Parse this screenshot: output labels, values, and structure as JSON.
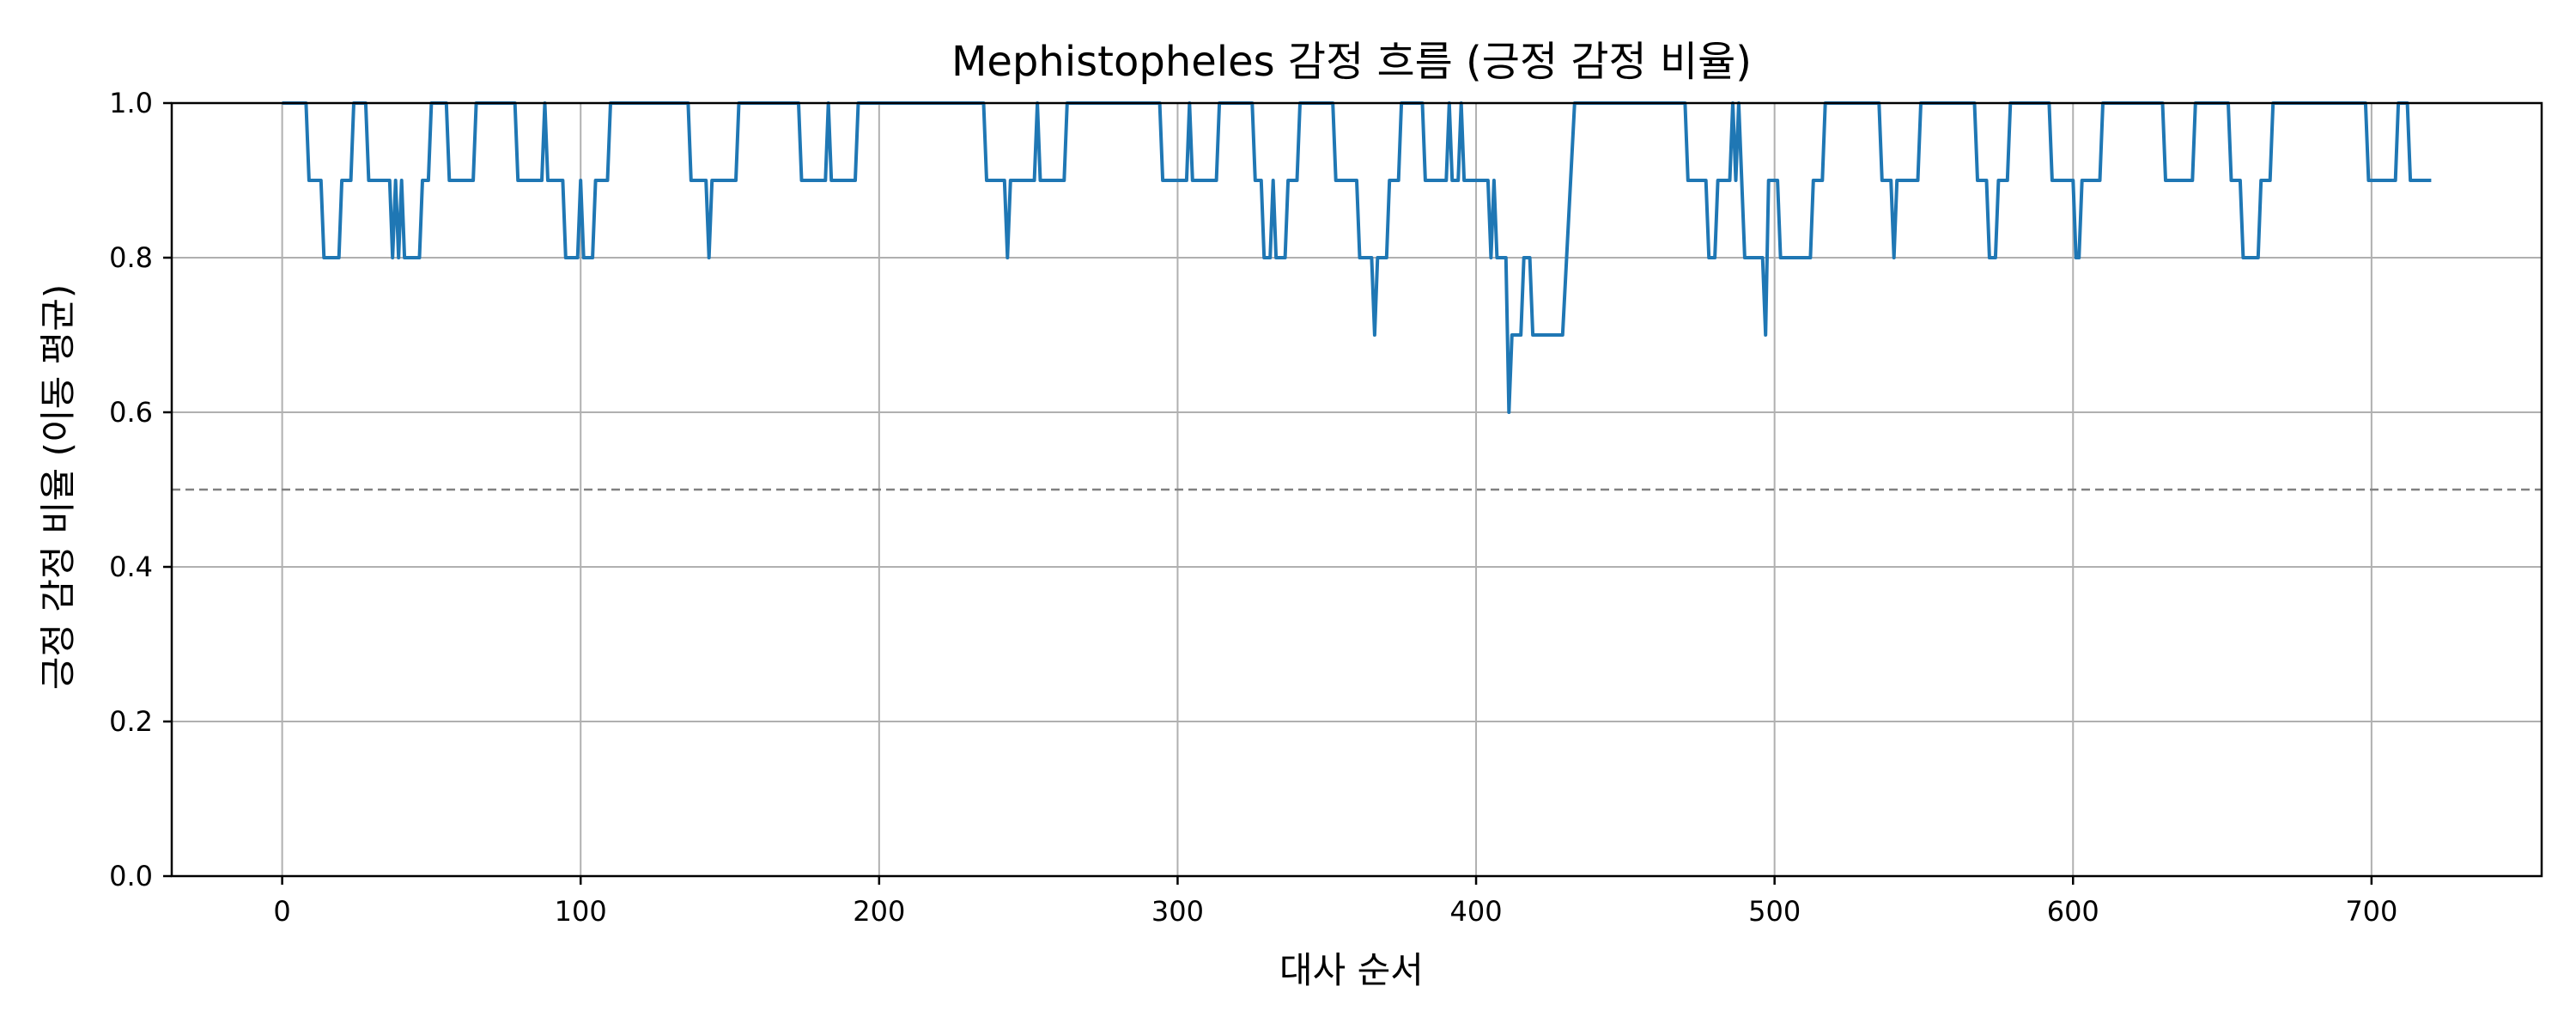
{
  "chart_data": {
    "type": "line",
    "title": "Mephistopheles 감정 흐름 (긍정 감정 비율)",
    "xlabel": "대사 순서",
    "ylabel": "긍정 감정 비율 (이동 평균)",
    "xlim": [
      -37,
      757
    ],
    "ylim": [
      0.0,
      1.0
    ],
    "xticks": [
      0,
      100,
      200,
      300,
      400,
      500,
      600,
      700
    ],
    "xtick_labels": [
      "0",
      "100",
      "200",
      "300",
      "400",
      "500",
      "600",
      "700"
    ],
    "yticks": [
      0.0,
      0.2,
      0.4,
      0.6,
      0.8,
      1.0
    ],
    "ytick_labels": [
      "0.0",
      "0.2",
      "0.4",
      "0.6",
      "0.8",
      "1.0"
    ],
    "grid": true,
    "reference_line": {
      "y": 0.5,
      "style": "dashed",
      "color": "#808080"
    },
    "series": [
      {
        "color": "#1f77b4",
        "points": [
          [
            0,
            1.0
          ],
          [
            8,
            1.0
          ],
          [
            9,
            0.9
          ],
          [
            12,
            0.9
          ],
          [
            13,
            0.9
          ],
          [
            14,
            0.8
          ],
          [
            18,
            0.8
          ],
          [
            19,
            0.8
          ],
          [
            20,
            0.9
          ],
          [
            23,
            0.9
          ],
          [
            24,
            1.0
          ],
          [
            28,
            1.0
          ],
          [
            29,
            0.9
          ],
          [
            36,
            0.9
          ],
          [
            37,
            0.8
          ],
          [
            38,
            0.9
          ],
          [
            39,
            0.8
          ],
          [
            40,
            0.9
          ],
          [
            41,
            0.8
          ],
          [
            46,
            0.8
          ],
          [
            47,
            0.9
          ],
          [
            49,
            0.9
          ],
          [
            50,
            1.0
          ],
          [
            55,
            1.0
          ],
          [
            56,
            0.9
          ],
          [
            64,
            0.9
          ],
          [
            65,
            1.0
          ],
          [
            78,
            1.0
          ],
          [
            79,
            0.9
          ],
          [
            87,
            0.9
          ],
          [
            88,
            1.0
          ],
          [
            89,
            0.9
          ],
          [
            94,
            0.9
          ],
          [
            95,
            0.8
          ],
          [
            99,
            0.8
          ],
          [
            100,
            0.9
          ],
          [
            101,
            0.8
          ],
          [
            104,
            0.8
          ],
          [
            105,
            0.9
          ],
          [
            109,
            0.9
          ],
          [
            110,
            1.0
          ],
          [
            136,
            1.0
          ],
          [
            137,
            0.9
          ],
          [
            142,
            0.9
          ],
          [
            143,
            0.8
          ],
          [
            144,
            0.9
          ],
          [
            152,
            0.9
          ],
          [
            153,
            1.0
          ],
          [
            173,
            1.0
          ],
          [
            174,
            0.9
          ],
          [
            182,
            0.9
          ],
          [
            183,
            1.0
          ],
          [
            184,
            0.9
          ],
          [
            192,
            0.9
          ],
          [
            193,
            1.0
          ],
          [
            235,
            1.0
          ],
          [
            236,
            0.9
          ],
          [
            242,
            0.9
          ],
          [
            243,
            0.8
          ],
          [
            244,
            0.9
          ],
          [
            252,
            0.9
          ],
          [
            253,
            1.0
          ],
          [
            254,
            0.9
          ],
          [
            262,
            0.9
          ],
          [
            263,
            1.0
          ],
          [
            294,
            1.0
          ],
          [
            295,
            0.9
          ],
          [
            303,
            0.9
          ],
          [
            304,
            1.0
          ],
          [
            305,
            0.9
          ],
          [
            313,
            0.9
          ],
          [
            314,
            1.0
          ],
          [
            325,
            1.0
          ],
          [
            326,
            0.9
          ],
          [
            328,
            0.9
          ],
          [
            329,
            0.8
          ],
          [
            331,
            0.8
          ],
          [
            332,
            0.9
          ],
          [
            333,
            0.8
          ],
          [
            336,
            0.8
          ],
          [
            337,
            0.9
          ],
          [
            340,
            0.9
          ],
          [
            341,
            1.0
          ],
          [
            352,
            1.0
          ],
          [
            353,
            0.9
          ],
          [
            360,
            0.9
          ],
          [
            361,
            0.8
          ],
          [
            365,
            0.8
          ],
          [
            366,
            0.7
          ],
          [
            367,
            0.8
          ],
          [
            370,
            0.8
          ],
          [
            371,
            0.9
          ],
          [
            374,
            0.9
          ],
          [
            375,
            1.0
          ],
          [
            382,
            1.0
          ],
          [
            383,
            0.9
          ],
          [
            390,
            0.9
          ],
          [
            391,
            1.0
          ],
          [
            392,
            0.9
          ],
          [
            394,
            0.9
          ],
          [
            395,
            1.0
          ],
          [
            396,
            0.9
          ],
          [
            404,
            0.9
          ],
          [
            405,
            0.8
          ],
          [
            406,
            0.9
          ],
          [
            407,
            0.8
          ],
          [
            410,
            0.8
          ],
          [
            411,
            0.6
          ],
          [
            412,
            0.7
          ],
          [
            415,
            0.7
          ],
          [
            416,
            0.8
          ],
          [
            418,
            0.8
          ],
          [
            419,
            0.7
          ],
          [
            429,
            0.7
          ],
          [
            433,
            1.0
          ],
          [
            470,
            1.0
          ],
          [
            471,
            0.9
          ],
          [
            477,
            0.9
          ],
          [
            478,
            0.8
          ],
          [
            480,
            0.8
          ],
          [
            481,
            0.9
          ],
          [
            485,
            0.9
          ],
          [
            486,
            1.0
          ],
          [
            487,
            0.9
          ],
          [
            488,
            1.0
          ],
          [
            489,
            0.9
          ],
          [
            490,
            0.8
          ],
          [
            495,
            0.8
          ],
          [
            496,
            0.8
          ],
          [
            497,
            0.7
          ],
          [
            498,
            0.9
          ],
          [
            501,
            0.9
          ],
          [
            502,
            0.8
          ],
          [
            512,
            0.8
          ],
          [
            513,
            0.9
          ],
          [
            516,
            0.9
          ],
          [
            517,
            1.0
          ],
          [
            535,
            1.0
          ],
          [
            536,
            0.9
          ],
          [
            539,
            0.9
          ],
          [
            540,
            0.8
          ],
          [
            541,
            0.9
          ],
          [
            542,
            0.9
          ],
          [
            548,
            0.9
          ],
          [
            549,
            1.0
          ],
          [
            567,
            1.0
          ],
          [
            568,
            0.9
          ],
          [
            571,
            0.9
          ],
          [
            572,
            0.8
          ],
          [
            574,
            0.8
          ],
          [
            575,
            0.9
          ],
          [
            578,
            0.9
          ],
          [
            579,
            1.0
          ],
          [
            592,
            1.0
          ],
          [
            593,
            0.9
          ],
          [
            600,
            0.9
          ],
          [
            601,
            0.8
          ],
          [
            602,
            0.8
          ],
          [
            603,
            0.9
          ],
          [
            609,
            0.9
          ],
          [
            610,
            1.0
          ],
          [
            630,
            1.0
          ],
          [
            631,
            0.9
          ],
          [
            640,
            0.9
          ],
          [
            641,
            1.0
          ],
          [
            652,
            1.0
          ],
          [
            653,
            0.9
          ],
          [
            656,
            0.9
          ],
          [
            657,
            0.8
          ],
          [
            662,
            0.8
          ],
          [
            663,
            0.9
          ],
          [
            666,
            0.9
          ],
          [
            667,
            1.0
          ],
          [
            698,
            1.0
          ],
          [
            699,
            0.9
          ],
          [
            708,
            0.9
          ],
          [
            709,
            1.0
          ],
          [
            712,
            1.0
          ],
          [
            713,
            0.9
          ],
          [
            720,
            0.9
          ]
        ]
      }
    ]
  }
}
